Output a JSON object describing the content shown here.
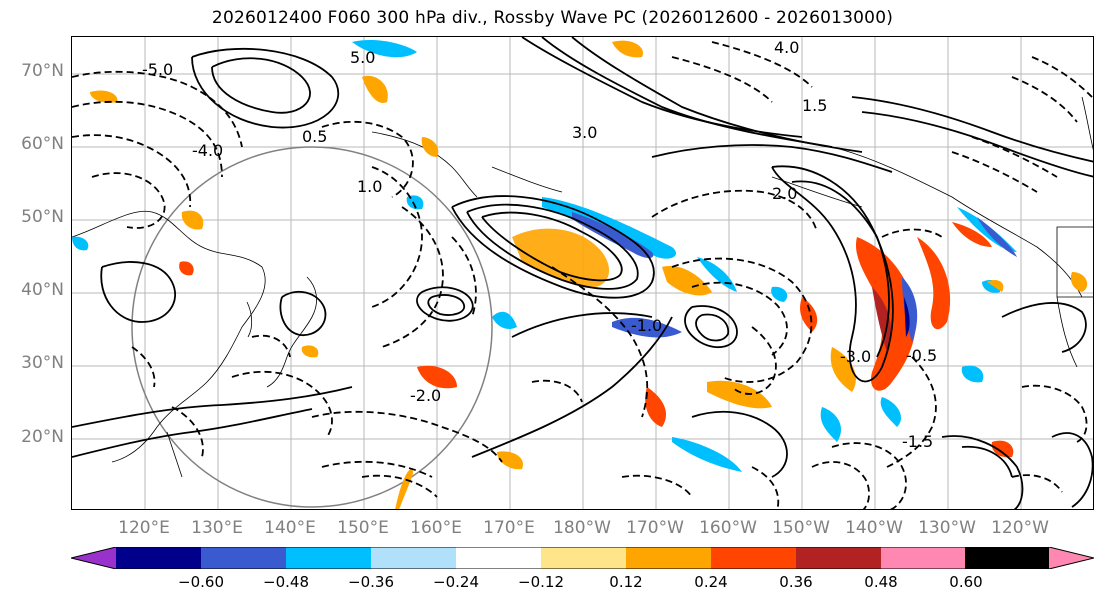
{
  "title": "2026012400 F060 300 hPa div., Rossby Wave PC (2026012600 - 2026013000)",
  "latitude_labels": [
    "70°N",
    "60°N",
    "50°N",
    "40°N",
    "30°N",
    "20°N"
  ],
  "longitude_labels": [
    "120°E",
    "130°E",
    "140°E",
    "150°E",
    "160°E",
    "170°E",
    "180°W",
    "170°W",
    "160°W",
    "150°W",
    "140°W",
    "130°W",
    "120°W"
  ],
  "colorbar": {
    "colors": [
      "#9932cc",
      "#00008b",
      "#3a5bd0",
      "#00bfff",
      "#b0e0fa",
      "#ffffff",
      "#ffe58a",
      "#ffa500",
      "#ff4500",
      "#b22222",
      "#ff88b2"
    ],
    "tick_labels": [
      "−0.60",
      "−0.48",
      "−0.36",
      "−0.24",
      "−0.12",
      "0.12",
      "0.24",
      "0.36",
      "0.48",
      "0.60"
    ]
  },
  "contour_labels": [
    "5.0",
    "4.0",
    "3.0",
    "2.0",
    "1.5",
    "1.0",
    "0.5",
    "-0.5",
    "-1.0",
    "-1.5",
    "-2.0",
    "-3.0",
    "-4.0",
    "-5.0"
  ]
}
